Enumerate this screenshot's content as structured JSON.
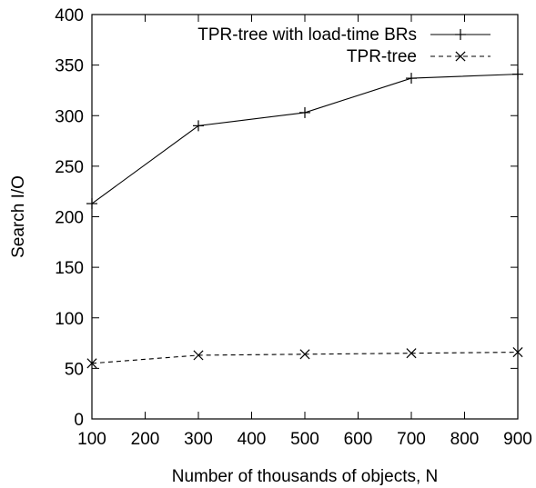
{
  "chart_data": {
    "type": "line",
    "title": "",
    "xlabel": "Number of thousands of objects, N",
    "ylabel": "Search I/O",
    "xlim": [
      100,
      900
    ],
    "ylim": [
      0,
      400
    ],
    "xticks": [
      100,
      200,
      300,
      400,
      500,
      600,
      700,
      800,
      900
    ],
    "yticks": [
      0,
      50,
      100,
      150,
      200,
      250,
      300,
      350,
      400
    ],
    "grid": false,
    "legend_position": "top-right",
    "series": [
      {
        "name": "TPR-tree with load-time BRs",
        "marker": "plus",
        "line_style": "solid",
        "color": "#000000",
        "x": [
          100,
          300,
          500,
          700,
          900
        ],
        "y": [
          213,
          290,
          303,
          337,
          341
        ]
      },
      {
        "name": "TPR-tree",
        "marker": "cross",
        "line_style": "dashed",
        "color": "#000000",
        "x": [
          100,
          300,
          500,
          700,
          900
        ],
        "y": [
          55,
          63,
          64,
          65,
          66
        ]
      }
    ]
  }
}
